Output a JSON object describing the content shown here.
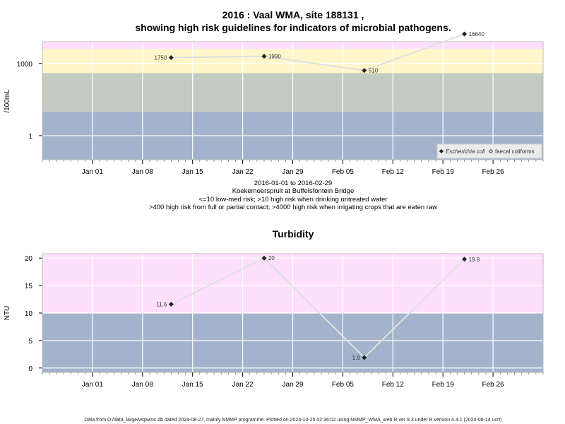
{
  "chart_data": [
    {
      "type": "line",
      "title_line1": "2016 : Vaal WMA, site 188131 ,",
      "title_line2": "showing high risk guidelines for indicators of microbial pathogens.",
      "ylabel": "/100mL",
      "xlabel": "",
      "y_scale": "log",
      "ylim": [
        0.1,
        8000
      ],
      "y_ticks": [
        {
          "value": 1,
          "label": "1"
        },
        {
          "value": 1000,
          "label": "1000"
        }
      ],
      "xlim": [
        "2015-12-25",
        "2016-03-04"
      ],
      "x_ticks": [
        {
          "date": "2016-01-01",
          "label": "Jan 01"
        },
        {
          "date": "2016-01-08",
          "label": "Jan 08"
        },
        {
          "date": "2016-01-15",
          "label": "Jan 15"
        },
        {
          "date": "2016-01-22",
          "label": "Jan 22"
        },
        {
          "date": "2016-01-29",
          "label": "Jan 29"
        },
        {
          "date": "2016-02-05",
          "label": "Feb 05"
        },
        {
          "date": "2016-02-12",
          "label": "Feb 12"
        },
        {
          "date": "2016-02-19",
          "label": "Feb 19"
        },
        {
          "date": "2016-02-26",
          "label": "Feb 26"
        }
      ],
      "grid": true,
      "bands": [
        {
          "from": 0.1,
          "to": 10,
          "color": "#a3b3cc"
        },
        {
          "from": 10,
          "to": 400,
          "color": "#c3cbc0"
        },
        {
          "from": 400,
          "to": 4000,
          "color": "#fff7c9"
        },
        {
          "from": 4000,
          "to": 8000,
          "color": "#ffe0fc"
        }
      ],
      "series": [
        {
          "name": "Escherichia coli",
          "marker": "filled-diamond",
          "points": [
            {
              "x": "2016-01-12",
              "y": 1750,
              "label": "1750",
              "label_side": "left"
            },
            {
              "x": "2016-01-25",
              "y": 1990,
              "label": "1990",
              "label_side": "right"
            },
            {
              "x": "2016-02-08",
              "y": 510,
              "label": "510",
              "label_side": "right"
            },
            {
              "x": "2016-02-22",
              "y": 16640,
              "label": "16640",
              "label_side": "right"
            }
          ]
        }
      ],
      "legend": {
        "placement": "bottom-right",
        "entries": [
          {
            "name": "Escherichia coli",
            "marker": "filled-diamond",
            "italic": true
          },
          {
            "name": "faecal coliforms",
            "marker": "open-diamond",
            "italic": false
          }
        ]
      },
      "notes": [
        "2016-01-01 to 2016-02-29",
        "Koekemoerspruit at Buffelsfontein Bridge",
        "<=10 low-med risk; >10 high risk when drinking untreated water",
        ">400 high risk from full or partial contact; >4000 high risk when irrigating crops that are eaten raw"
      ]
    },
    {
      "type": "line",
      "title": "Turbidity",
      "ylabel": "NTU",
      "xlabel": "",
      "y_scale": "linear",
      "ylim": [
        -0.8,
        20.8
      ],
      "y_ticks": [
        {
          "value": 0,
          "label": "0"
        },
        {
          "value": 5,
          "label": "5"
        },
        {
          "value": 10,
          "label": "10"
        },
        {
          "value": 15,
          "label": "15"
        },
        {
          "value": 20,
          "label": "20"
        }
      ],
      "xlim": [
        "2015-12-25",
        "2016-03-04"
      ],
      "x_ticks": [
        {
          "date": "2016-01-01",
          "label": "Jan 01"
        },
        {
          "date": "2016-01-08",
          "label": "Jan 08"
        },
        {
          "date": "2016-01-15",
          "label": "Jan 15"
        },
        {
          "date": "2016-01-22",
          "label": "Jan 22"
        },
        {
          "date": "2016-01-29",
          "label": "Jan 29"
        },
        {
          "date": "2016-02-05",
          "label": "Feb 05"
        },
        {
          "date": "2016-02-12",
          "label": "Feb 12"
        },
        {
          "date": "2016-02-19",
          "label": "Feb 19"
        },
        {
          "date": "2016-02-26",
          "label": "Feb 26"
        }
      ],
      "grid": true,
      "bands": [
        {
          "from": -0.8,
          "to": 10,
          "color": "#a3b3cc"
        },
        {
          "from": 10,
          "to": 20.8,
          "color": "#ffe0fc"
        }
      ],
      "series": [
        {
          "marker": "filled-diamond",
          "points": [
            {
              "x": "2016-01-12",
              "y": 11.6,
              "label": "11.6",
              "label_side": "left"
            },
            {
              "x": "2016-01-25",
              "y": 20,
              "label": "20",
              "label_side": "right"
            },
            {
              "x": "2016-02-08",
              "y": 1.9,
              "label": "1.9",
              "label_side": "left"
            },
            {
              "x": "2016-02-22",
              "y": 19.8,
              "label": "19.8",
              "label_side": "right"
            }
          ]
        }
      ]
    }
  ],
  "footer": "Data from D:/data_large/wq/wms.db dated 2024-08-27, mainly NMMP programme. Plotted on 2024-10-25 02:36:02 using NMMP_WMA_web.R ver 9.3 under R version 4.4.1 (2024-06-14 ucrt)",
  "colors": {
    "line": "#e0e0e0",
    "marker": "#222222",
    "grid": "#ffffff",
    "panel_border": "#bbbbbb"
  }
}
